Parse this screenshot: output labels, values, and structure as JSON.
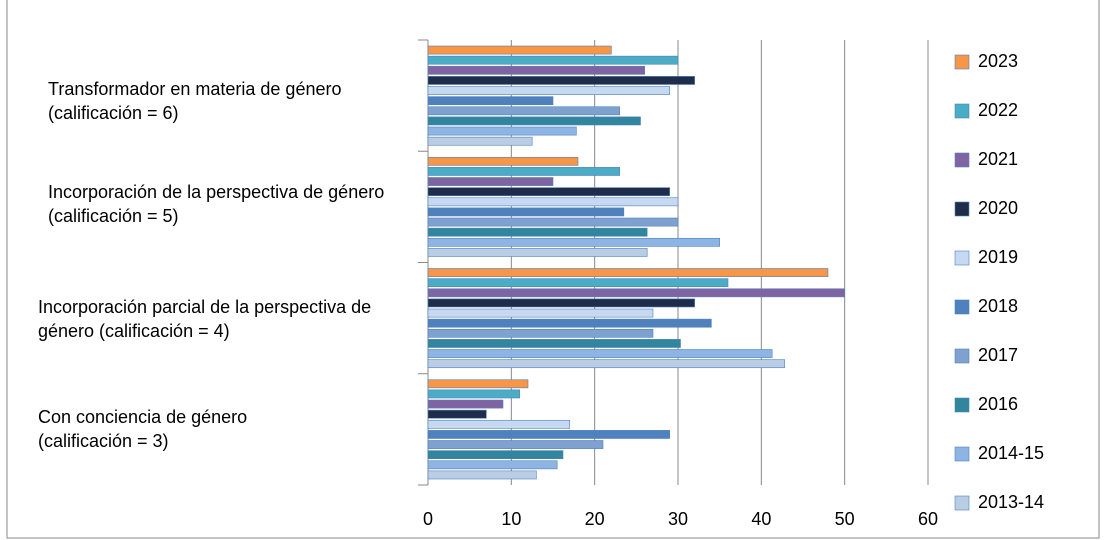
{
  "chart_data": {
    "type": "bar",
    "orientation": "horizontal",
    "categories": [
      "Con conciencia de género (calificación = 3)",
      "Incorporación parcial de la perspectiva de género (calificación = 4)",
      "Incorporación de la perspectiva de género (calificación = 5)",
      "Transformador en materia de género (calificación = 6)"
    ],
    "series": [
      {
        "name": "2023",
        "color": "#f79646",
        "values": [
          12,
          48,
          18,
          22
        ]
      },
      {
        "name": "2022",
        "color": "#4bacc6",
        "values": [
          11,
          36,
          23,
          30
        ]
      },
      {
        "name": "2021",
        "color": "#8064a2",
        "values": [
          9,
          50,
          15,
          26
        ]
      },
      {
        "name": "2020",
        "color": "#1f2d4a",
        "values": [
          7,
          32,
          29,
          32
        ]
      },
      {
        "name": "2019",
        "color": "#c6d9f1",
        "values": [
          17,
          27,
          30,
          29
        ]
      },
      {
        "name": "2018",
        "color": "#4f81bd",
        "values": [
          29,
          34,
          23.5,
          15
        ]
      },
      {
        "name": "2017",
        "color": "#7ea1d0",
        "values": [
          21,
          27,
          30,
          23
        ]
      },
      {
        "name": "2016",
        "color": "#31859c",
        "values": [
          16.2,
          30.3,
          26.3,
          25.5
        ]
      },
      {
        "name": "2014-15",
        "color": "#8eb4e3",
        "values": [
          15.5,
          41.3,
          35,
          17.8
        ]
      },
      {
        "name": "2013-14",
        "color": "#b9cde5",
        "values": [
          13,
          42.8,
          26.3,
          12.5
        ]
      }
    ],
    "xlim": [
      0,
      60
    ],
    "xticks": [
      0,
      10,
      20,
      30,
      40,
      50,
      60
    ],
    "grid": true
  }
}
